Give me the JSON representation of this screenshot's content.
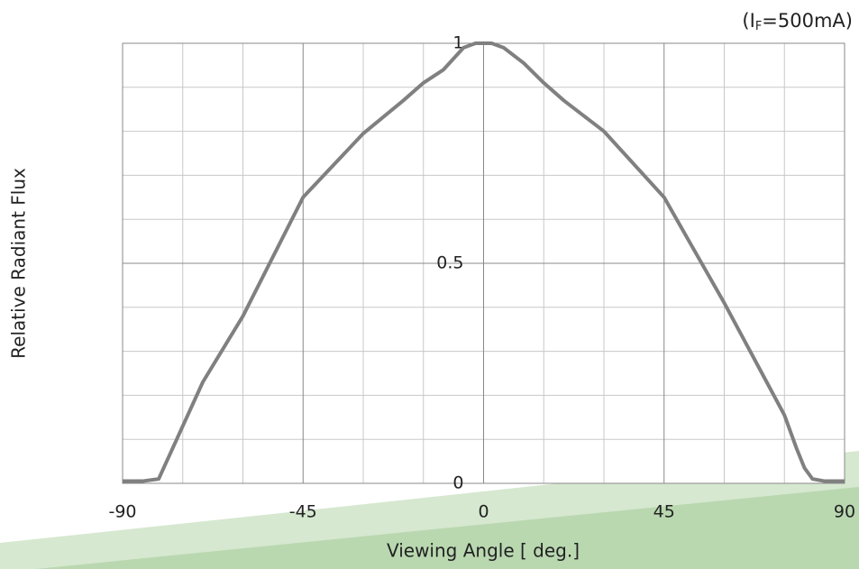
{
  "chart_data": {
    "type": "line",
    "annotation": [
      "(I",
      "F",
      "=500mA)"
    ],
    "xlabel": "Viewing Angle [ deg.]",
    "ylabel": "Relative Radiant Flux",
    "x": [
      -90,
      -85,
      -81,
      -79,
      -76,
      -70,
      -60,
      -45,
      -30,
      -20,
      -15,
      -10,
      -5,
      -2,
      0,
      2,
      5,
      10,
      15,
      20,
      30,
      45,
      60,
      70,
      75,
      78,
      80,
      82,
      85,
      90
    ],
    "series": [
      {
        "color": "#808080",
        "values": [
          0.005,
          0.005,
          0.01,
          0.05,
          0.11,
          0.23,
          0.38,
          0.65,
          0.795,
          0.87,
          0.91,
          0.94,
          0.99,
          1,
          1,
          1,
          0.99,
          0.955,
          0.91,
          0.87,
          0.8,
          0.65,
          0.41,
          0.24,
          0.155,
          0.08,
          0.035,
          0.01,
          0.005,
          0.005
        ]
      }
    ],
    "xlim": [
      -90,
      90
    ],
    "ylim": [
      0,
      1
    ],
    "xticks": [
      -90,
      -45,
      0,
      45,
      90
    ],
    "yticks": [
      0,
      0.5,
      1
    ],
    "xminor": [
      -75,
      -60,
      -30,
      -15,
      15,
      30,
      60,
      75
    ],
    "yminor": [
      0.1,
      0.2,
      0.3,
      0.4,
      0.6,
      0.7,
      0.8,
      0.9
    ],
    "grid": true
  }
}
